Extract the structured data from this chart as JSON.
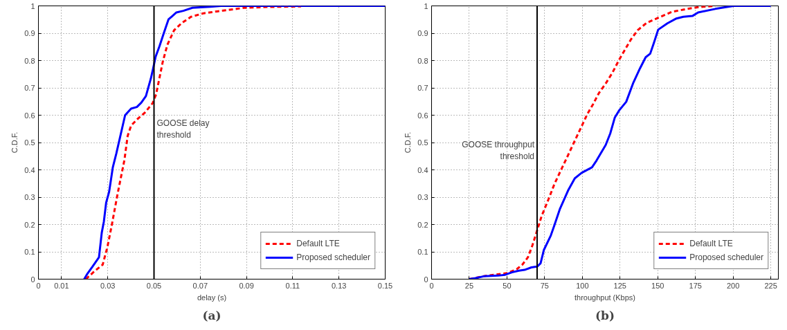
{
  "chart_data": [
    {
      "type": "line",
      "xlabel": "delay (s)",
      "ylabel": "C.D.F.",
      "xlim": [
        0,
        0.15
      ],
      "ylim": [
        0,
        1
      ],
      "xticks": [
        0,
        0.01,
        0.03,
        0.05,
        0.07,
        0.09,
        0.11,
        0.13,
        0.15
      ],
      "yticks": [
        0,
        0.1,
        0.2,
        0.3,
        0.4,
        0.5,
        0.6,
        0.7,
        0.8,
        0.9,
        1
      ],
      "grid": true,
      "legend": "bottom right",
      "series": [
        {
          "name": "Default LTE",
          "color": "#ff0000",
          "line_style": "dashed",
          "x": [
            0.0205,
            0.0244,
            0.0278,
            0.0298,
            0.0317,
            0.0342,
            0.0357,
            0.0372,
            0.0386,
            0.0401,
            0.043,
            0.046,
            0.0494,
            0.0509,
            0.0524,
            0.0538,
            0.0558,
            0.0587,
            0.0621,
            0.066,
            0.0715,
            0.0774,
            0.0891,
            0.0989,
            0.1136
          ],
          "values": [
            0,
            0.03,
            0.053,
            0.116,
            0.196,
            0.31,
            0.373,
            0.436,
            0.524,
            0.562,
            0.587,
            0.609,
            0.644,
            0.676,
            0.738,
            0.796,
            0.858,
            0.911,
            0.938,
            0.96,
            0.973,
            0.98,
            0.993,
            0.996,
            0.998
          ]
        },
        {
          "name": "Proposed scheduler",
          "color": "#0000ff",
          "line_style": "solid",
          "x": [
            0.0198,
            0.0212,
            0.0234,
            0.0262,
            0.0274,
            0.0283,
            0.0293,
            0.0306,
            0.0322,
            0.0337,
            0.0375,
            0.0401,
            0.0426,
            0.0445,
            0.0465,
            0.0486,
            0.0496,
            0.0507,
            0.0524,
            0.0543,
            0.0563,
            0.0578,
            0.0597,
            0.0627,
            0.0666,
            0.0744,
            0.079,
            0.15
          ],
          "values": [
            0,
            0.02,
            0.046,
            0.08,
            0.17,
            0.21,
            0.28,
            0.32,
            0.41,
            0.46,
            0.6,
            0.624,
            0.63,
            0.646,
            0.67,
            0.733,
            0.77,
            0.814,
            0.853,
            0.902,
            0.951,
            0.962,
            0.976,
            0.982,
            0.993,
            0.997,
            1,
            1
          ]
        }
      ],
      "ref_lines": [
        {
          "axis": "x",
          "value": 0.05,
          "label": "GOOSE delay\nthreshold",
          "color": "#000000"
        }
      ],
      "annotations": [
        "(a)"
      ]
    },
    {
      "type": "line",
      "xlabel": "throughput (Kbps)",
      "ylabel": "C.D.F.",
      "xlim": [
        0,
        230
      ],
      "ylim": [
        0,
        1
      ],
      "xticks": [
        0,
        25,
        50,
        75,
        100,
        125,
        150,
        175,
        200,
        225
      ],
      "yticks": [
        0,
        0.1,
        0.2,
        0.3,
        0.4,
        0.5,
        0.6,
        0.7,
        0.8,
        0.9,
        1
      ],
      "grid": true,
      "legend": "bottom right",
      "series": [
        {
          "name": "Default LTE",
          "color": "#ff0000",
          "line_style": "dashed",
          "x": [
            25,
            36.7,
            50.3,
            56.4,
            60.2,
            63.9,
            66.9,
            70,
            73,
            77.6,
            81.4,
            85.9,
            89.7,
            93.5,
            98.8,
            103.3,
            107.1,
            110.9,
            115.5,
            120,
            124.5,
            128.3,
            132.1,
            136.7,
            142.7,
            151.8,
            159.4,
            168.5,
            177.6,
            188.2
          ],
          "values": [
            0,
            0.013,
            0.022,
            0.036,
            0.053,
            0.08,
            0.124,
            0.178,
            0.231,
            0.293,
            0.347,
            0.4,
            0.444,
            0.489,
            0.551,
            0.604,
            0.64,
            0.68,
            0.716,
            0.756,
            0.804,
            0.84,
            0.876,
            0.911,
            0.938,
            0.96,
            0.978,
            0.988,
            0.996,
            1
          ]
        },
        {
          "name": "Proposed scheduler",
          "color": "#0000ff",
          "line_style": "solid",
          "x": [
            25,
            29.1,
            35.2,
            44.2,
            48.8,
            53.3,
            57.9,
            61.7,
            66.2,
            70,
            72.3,
            74.5,
            79.1,
            81.4,
            85.2,
            90.5,
            95,
            99.5,
            106.4,
            109.4,
            115.5,
            118.5,
            121.5,
            124.5,
            129.1,
            133.6,
            138.2,
            142,
            145,
            147.3,
            150.3,
            156.4,
            162.4,
            167,
            173,
            176.8,
            188.2,
            200.3,
            225
          ],
          "values": [
            0,
            0.004,
            0.011,
            0.013,
            0.016,
            0.025,
            0.031,
            0.034,
            0.043,
            0.046,
            0.058,
            0.107,
            0.16,
            0.196,
            0.258,
            0.324,
            0.369,
            0.389,
            0.409,
            0.434,
            0.491,
            0.533,
            0.591,
            0.618,
            0.649,
            0.716,
            0.771,
            0.812,
            0.825,
            0.862,
            0.913,
            0.936,
            0.954,
            0.96,
            0.963,
            0.976,
            0.989,
            1,
            1
          ]
        }
      ],
      "ref_lines": [
        {
          "axis": "x",
          "value": 70,
          "label": "GOOSE throughput\nthreshold",
          "color": "#000000"
        }
      ],
      "annotations": [
        "(b)"
      ]
    }
  ]
}
